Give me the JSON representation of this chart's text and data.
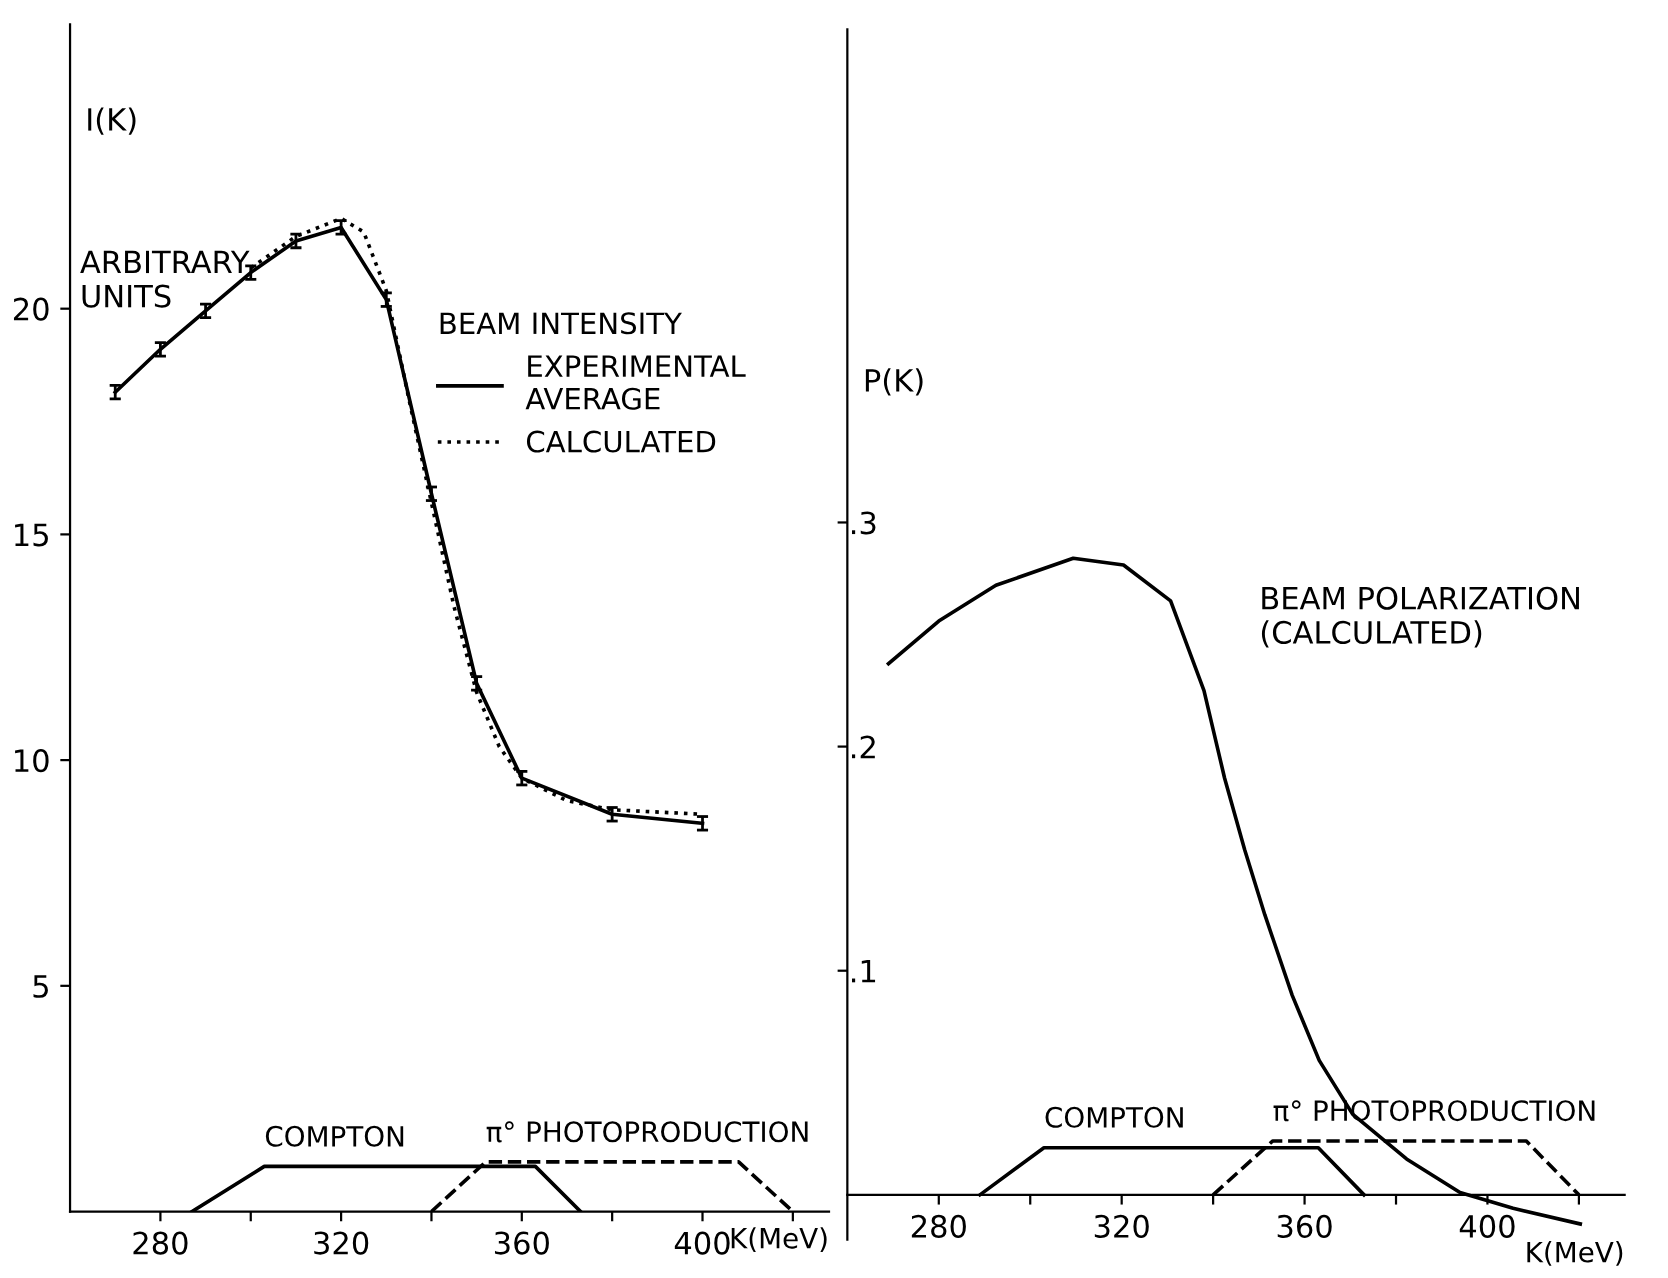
{
  "chart_data": [
    {
      "type": "line",
      "xlabel": "K(MeV)",
      "ylabel": "I(K)",
      "legend_title": "BEAM INTENSITY",
      "legend": "right",
      "xlim": [
        260,
        428
      ],
      "ylim": [
        0,
        26.3
      ],
      "xticks": [
        280,
        {
          "value": 300,
          "label": null
        },
        320,
        {
          "value": 340,
          "label": null
        },
        360,
        {
          "value": 380,
          "label": null
        },
        400,
        {
          "value": 420,
          "label": null
        }
      ],
      "yticks": [
        5,
        10,
        15,
        20
      ],
      "annotations": [
        "ARBITRARY\nUNITS"
      ],
      "series": [
        {
          "name": "EXPERIMENTAL\nAVERAGE",
          "color": "#000000",
          "line_style": "solid",
          "x": [
            270,
            280,
            290,
            300,
            310,
            320,
            330,
            340,
            350,
            360,
            380,
            400
          ],
          "values": [
            18.15,
            19.1,
            19.95,
            20.8,
            21.5,
            21.8,
            20.2,
            15.9,
            11.7,
            9.6,
            8.8,
            8.6
          ],
          "errors": [
            0.15,
            0.15,
            0.15,
            0.15,
            0.15,
            0.15,
            0.15,
            0.15,
            0.15,
            0.15,
            0.15,
            0.15
          ]
        },
        {
          "name": "CALCULATED",
          "color": "#000000",
          "line_style": "dotted",
          "x": [
            300,
            310,
            320,
            325,
            330,
            335,
            340,
            345,
            350,
            355,
            360,
            370,
            380,
            400
          ],
          "values": [
            20.9,
            21.6,
            22.0,
            21.7,
            20.4,
            18.0,
            15.7,
            13.4,
            11.5,
            10.3,
            9.6,
            9.1,
            8.9,
            8.8
          ]
        },
        {
          "name": "COMPTON",
          "color": "#000000",
          "line_style": "solid",
          "x": [
            287,
            303,
            363,
            373
          ],
          "values": [
            0,
            1.0,
            1.0,
            0
          ]
        },
        {
          "name": "π° PHOTOPRODUCTION",
          "color": "#000000",
          "line_style": "dashed",
          "x": [
            340,
            352,
            408,
            420
          ],
          "values": [
            0,
            1.1,
            1.1,
            0
          ]
        }
      ]
    },
    {
      "type": "line",
      "xlabel": "K(MeV)",
      "ylabel": "P(K)",
      "xlim": [
        260,
        430
      ],
      "ylim": [
        -0.02,
        0.52
      ],
      "xticks": [
        280,
        {
          "value": 300,
          "label": null
        },
        320,
        {
          "value": 340,
          "label": null
        },
        360,
        {
          "value": 380,
          "label": null
        },
        400,
        {
          "value": 420,
          "label": null
        }
      ],
      "yticks": [
        {
          "value": 0.1,
          "label": ".1"
        },
        {
          "value": 0.2,
          "label": ".2"
        },
        {
          "value": 0.3,
          "label": ".3"
        }
      ],
      "annotations": [
        "BEAM POLARIZATION\n(CALCULATED)"
      ],
      "series": [
        {
          "color": "#000000",
          "line_style": "solid",
          "x": [
            269,
            280,
            292.5,
            309.4,
            320.4,
            330.7,
            338,
            342.5,
            346.9,
            351.3,
            357.3,
            363.2,
            370.5,
            382.3,
            394,
            405.6,
            420.3
          ],
          "values": [
            0.237,
            0.256,
            0.272,
            0.284,
            0.281,
            0.265,
            0.225,
            0.186,
            0.154,
            0.125,
            0.089,
            0.06,
            0.036,
            0.016,
            0.001,
            -0.006,
            -0.013
          ]
        },
        {
          "name": "COMPTON",
          "color": "#000000",
          "line_style": "solid",
          "x": [
            289,
            303,
            363,
            373
          ],
          "values": [
            0,
            0.021,
            0.021,
            0
          ]
        },
        {
          "name": "π° PHOTOPRODUCTION",
          "color": "#000000",
          "line_style": "dashed",
          "x": [
            340,
            353,
            408.5,
            420
          ],
          "values": [
            0,
            0.024,
            0.024,
            0
          ]
        }
      ]
    }
  ]
}
